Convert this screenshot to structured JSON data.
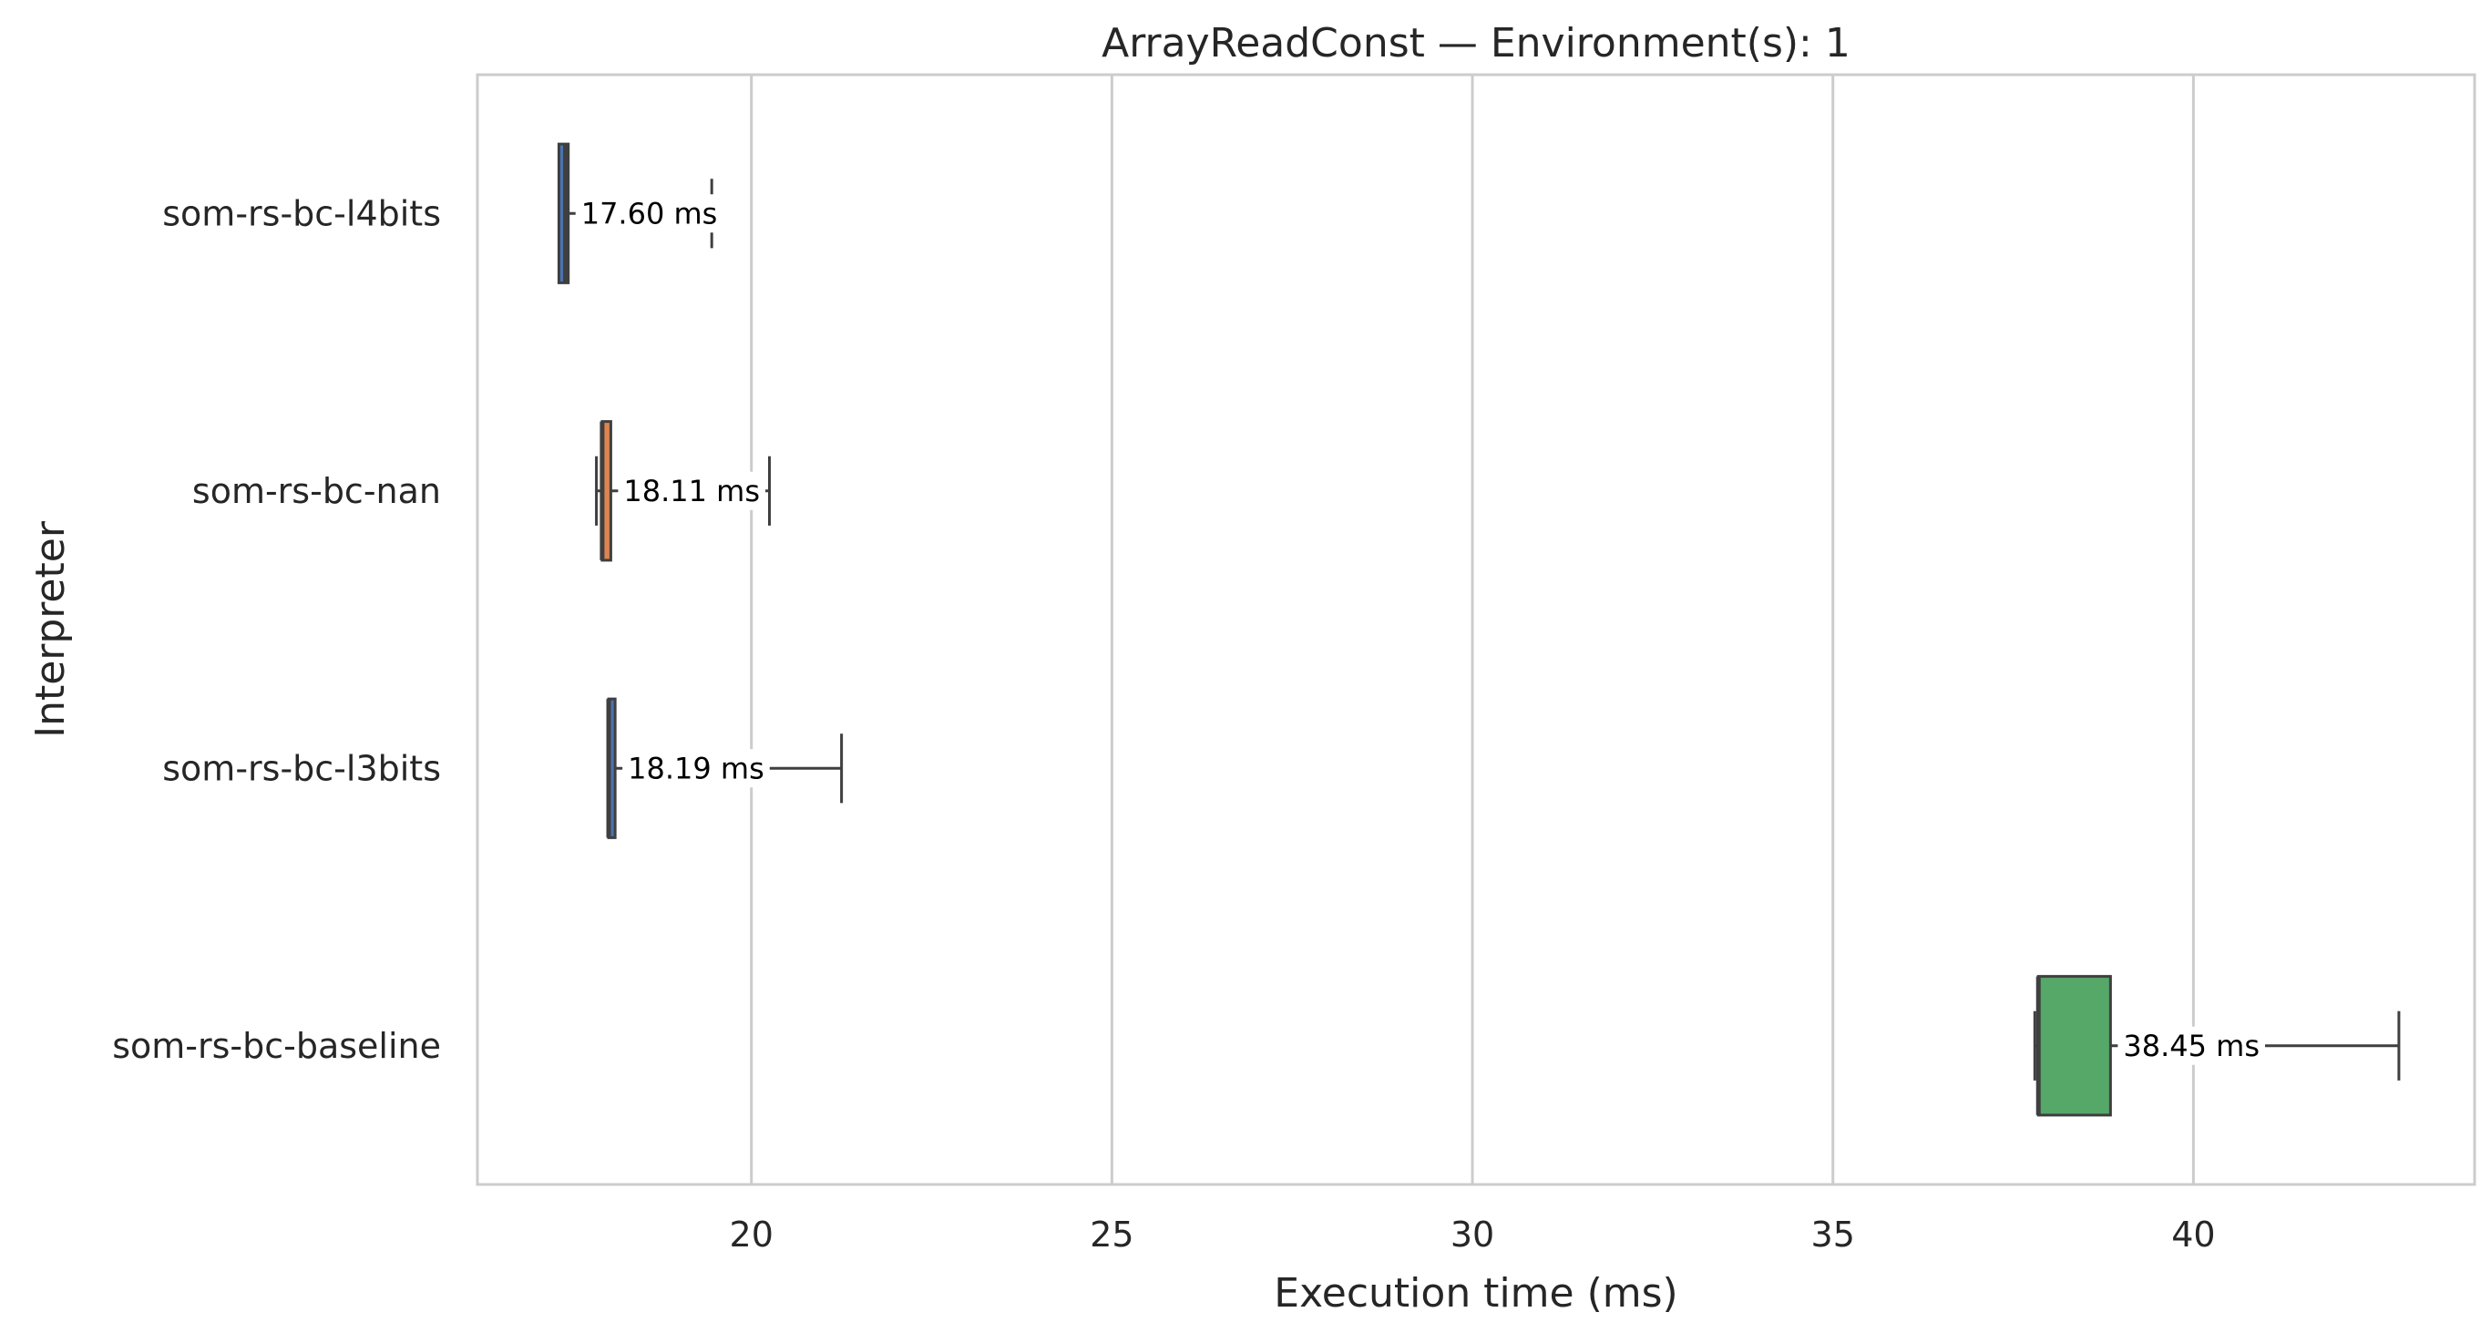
{
  "chart_data": {
    "type": "boxplot",
    "orientation": "horizontal",
    "title": "ArrayReadConst — Environment(s): 1",
    "xlabel": "Execution time (ms)",
    "ylabel": "Interpreter",
    "xlim": [
      16.2,
      43.9
    ],
    "xticks": [
      20,
      25,
      30,
      35,
      40
    ],
    "grid": "vertical",
    "categories": [
      "som-rs-bc-l4bits",
      "som-rs-bc-nan",
      "som-rs-bc-l3bits",
      "som-rs-bc-baseline"
    ],
    "boxes": [
      {
        "name": "som-rs-bc-l4bits",
        "whisker_low": 17.33,
        "q1": 17.33,
        "median": 17.42,
        "q3": 17.46,
        "whisker_high": 19.45,
        "color": "#4c72b0",
        "label": "17.60 ms"
      },
      {
        "name": "som-rs-bc-nan",
        "whisker_low": 17.85,
        "q1": 17.93,
        "median": 17.93,
        "q3": 18.05,
        "whisker_high": 20.25,
        "color": "#dd8452",
        "label": "18.11 ms"
      },
      {
        "name": "som-rs-bc-l3bits",
        "whisker_low": 18.02,
        "q1": 18.02,
        "median": 18.02,
        "q3": 18.11,
        "whisker_high": 21.25,
        "color": "#4c72b0",
        "label": "18.19 ms"
      },
      {
        "name": "som-rs-bc-baseline",
        "whisker_low": 37.8,
        "q1": 37.85,
        "median": 37.85,
        "q3": 38.85,
        "whisker_high": 42.85,
        "color": "#55a868",
        "label": "38.45 ms"
      }
    ]
  }
}
